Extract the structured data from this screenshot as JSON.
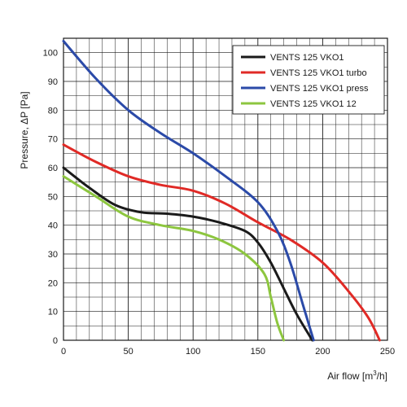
{
  "chart_data": {
    "type": "line",
    "title": "",
    "xlabel": "Air flow [m³/h]",
    "ylabel": "Pressure, ΔP [Pa]",
    "xlim": [
      0,
      250
    ],
    "ylim": [
      0,
      105
    ],
    "x_ticks": [
      0,
      50,
      100,
      150,
      200,
      250
    ],
    "y_ticks": [
      0,
      10,
      20,
      30,
      40,
      50,
      60,
      70,
      80,
      90,
      100
    ],
    "grid": true,
    "legend_position": "top-right",
    "series": [
      {
        "name": "VENTS 125 VKO1",
        "color": "#1a1a1a",
        "x": [
          0,
          20,
          40,
          60,
          80,
          100,
          120,
          140,
          150,
          160,
          170,
          180,
          192
        ],
        "y": [
          60,
          53,
          47,
          44.5,
          44,
          43,
          41,
          38,
          34,
          27,
          18,
          9,
          0
        ]
      },
      {
        "name": "VENTS 125 VKO1 turbo",
        "color": "#e02a26",
        "x": [
          0,
          25,
          50,
          75,
          100,
          125,
          150,
          175,
          200,
          220,
          235,
          244
        ],
        "y": [
          68,
          62,
          57,
          54,
          52,
          47.5,
          41,
          35,
          27,
          17,
          8,
          0
        ]
      },
      {
        "name": "VENTS 125 VKO1 press",
        "color": "#2b4aa8",
        "x": [
          0,
          25,
          50,
          75,
          100,
          125,
          150,
          165,
          175,
          185,
          193
        ],
        "y": [
          104,
          91,
          80,
          72,
          65,
          57,
          48,
          38,
          27,
          12,
          0
        ]
      },
      {
        "name": "VENTS 125 VKO1 12",
        "color": "#8dc63f",
        "x": [
          0,
          25,
          50,
          75,
          100,
          120,
          140,
          155,
          160,
          165,
          170
        ],
        "y": [
          57,
          50,
          43,
          40,
          38,
          35,
          30,
          23,
          15,
          6,
          0
        ]
      }
    ]
  }
}
